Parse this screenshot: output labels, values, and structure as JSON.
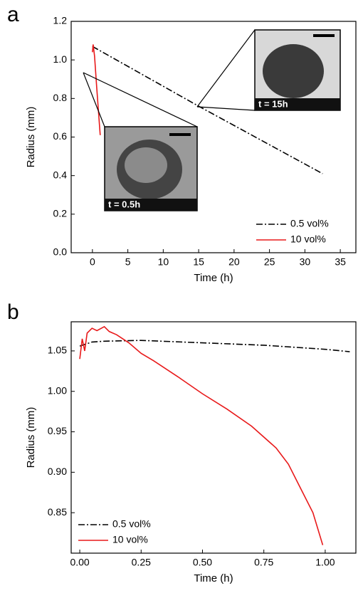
{
  "chart_data": [
    {
      "type": "line",
      "panel_label": "a",
      "x_label": "Time (h)",
      "y_label": "Radius (mm)",
      "xlim": [
        -3,
        37.2
      ],
      "xticks": [
        0,
        5,
        10,
        15,
        20,
        25,
        30,
        35
      ],
      "ylim": [
        0,
        1.2
      ],
      "yticks": [
        {
          "value": 0,
          "label": "0.0"
        },
        0.2,
        0.4,
        0.6,
        0.8,
        {
          "value": 1,
          "label": "1.0"
        },
        1.2
      ],
      "legend": "lower-right",
      "annotations": [
        "t = 0.5h",
        "t = 15h"
      ],
      "series": [
        {
          "name": "0.5 vol%",
          "color": "#000000",
          "dash": "dash-dot",
          "x": [
            0,
            15,
            32.5
          ],
          "values": [
            1.07,
            0.76,
            0.41
          ]
        },
        {
          "name": "10 vol%",
          "color": "#e8191a",
          "dash": "solid",
          "x": [
            0,
            0.1,
            0.3,
            0.6,
            1.1
          ],
          "values": [
            1.04,
            1.08,
            1.02,
            0.86,
            0.61
          ]
        }
      ]
    },
    {
      "type": "line",
      "panel_label": "b",
      "x_label": "Time (h)",
      "y_label": "Radius (mm)",
      "xlim": [
        -0.035,
        1.125
      ],
      "xticks": [
        {
          "value": 0,
          "label": "0.00"
        },
        0.25,
        {
          "value": 0.5,
          "label": "0.50"
        },
        0.75,
        {
          "value": 1,
          "label": "1.00"
        }
      ],
      "ylim": [
        0.8,
        1.086
      ],
      "yticks": [
        0.85,
        {
          "value": 0.9,
          "label": "0.90"
        },
        0.95,
        {
          "value": 1,
          "label": "1.00"
        },
        1.05
      ],
      "legend": "lower-left",
      "series": [
        {
          "name": "0.5 vol%",
          "color": "#000000",
          "dash": "dash-dot",
          "x": [
            0,
            0.05,
            0.1,
            0.25,
            0.5,
            0.75,
            1.0,
            1.1
          ],
          "values": [
            1.056,
            1.061,
            1.062,
            1.063,
            1.06,
            1.057,
            1.052,
            1.049
          ]
        },
        {
          "name": "10 vol%",
          "color": "#e8191a",
          "dash": "solid",
          "x": [
            0,
            0.01,
            0.02,
            0.03,
            0.05,
            0.07,
            0.1,
            0.12,
            0.15,
            0.2,
            0.25,
            0.3,
            0.4,
            0.5,
            0.6,
            0.7,
            0.8,
            0.85,
            0.9,
            0.95,
            0.99
          ],
          "values": [
            1.04,
            1.065,
            1.05,
            1.072,
            1.078,
            1.075,
            1.08,
            1.074,
            1.07,
            1.06,
            1.047,
            1.038,
            1.018,
            0.997,
            0.978,
            0.957,
            0.93,
            0.91,
            0.88,
            0.85,
            0.81
          ]
        }
      ]
    }
  ]
}
